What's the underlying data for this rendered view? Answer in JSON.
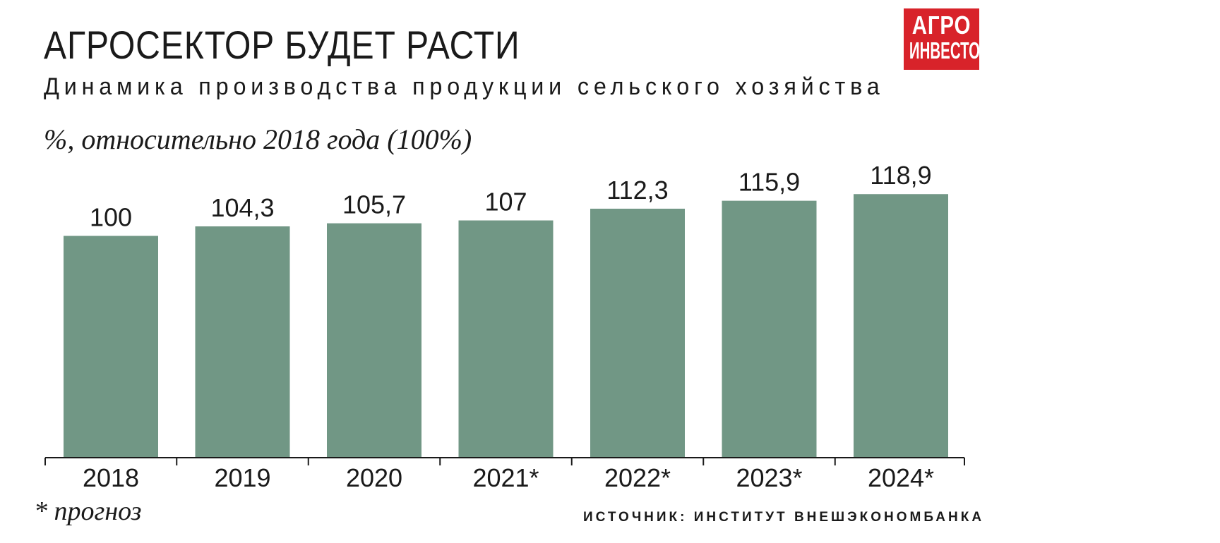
{
  "header": {
    "title": "АГРОСЕКТОР БУДЕТ РАСТИ",
    "subtitle": "Динамика производства продукции сельского хозяйства",
    "unit_note": "%, относительно 2018 года (100%)"
  },
  "logo": {
    "line1": "АГРО",
    "line2": "ИНВЕСТОР",
    "background": "#d8232a"
  },
  "chart_data": {
    "type": "bar",
    "categories": [
      "2018",
      "2019",
      "2020",
      "2021*",
      "2022*",
      "2023*",
      "2024*"
    ],
    "values": [
      100,
      104.3,
      105.7,
      107,
      112.3,
      115.9,
      118.9
    ],
    "value_labels": [
      "100",
      "104,3",
      "105,7",
      "107",
      "112,3",
      "115,9",
      "118,9"
    ],
    "title": "АГРОСЕКТОР БУДЕТ РАСТИ",
    "ylabel": "%, относительно 2018 года (100%)",
    "ylim": [
      0,
      125
    ],
    "grid": false,
    "legend": "none",
    "bar_color": "#719785"
  },
  "footer": {
    "footnote": "* прогноз",
    "source": "ИСТОЧНИК: ИНСТИТУТ ВНЕШЭКОНОМБАНКА"
  }
}
